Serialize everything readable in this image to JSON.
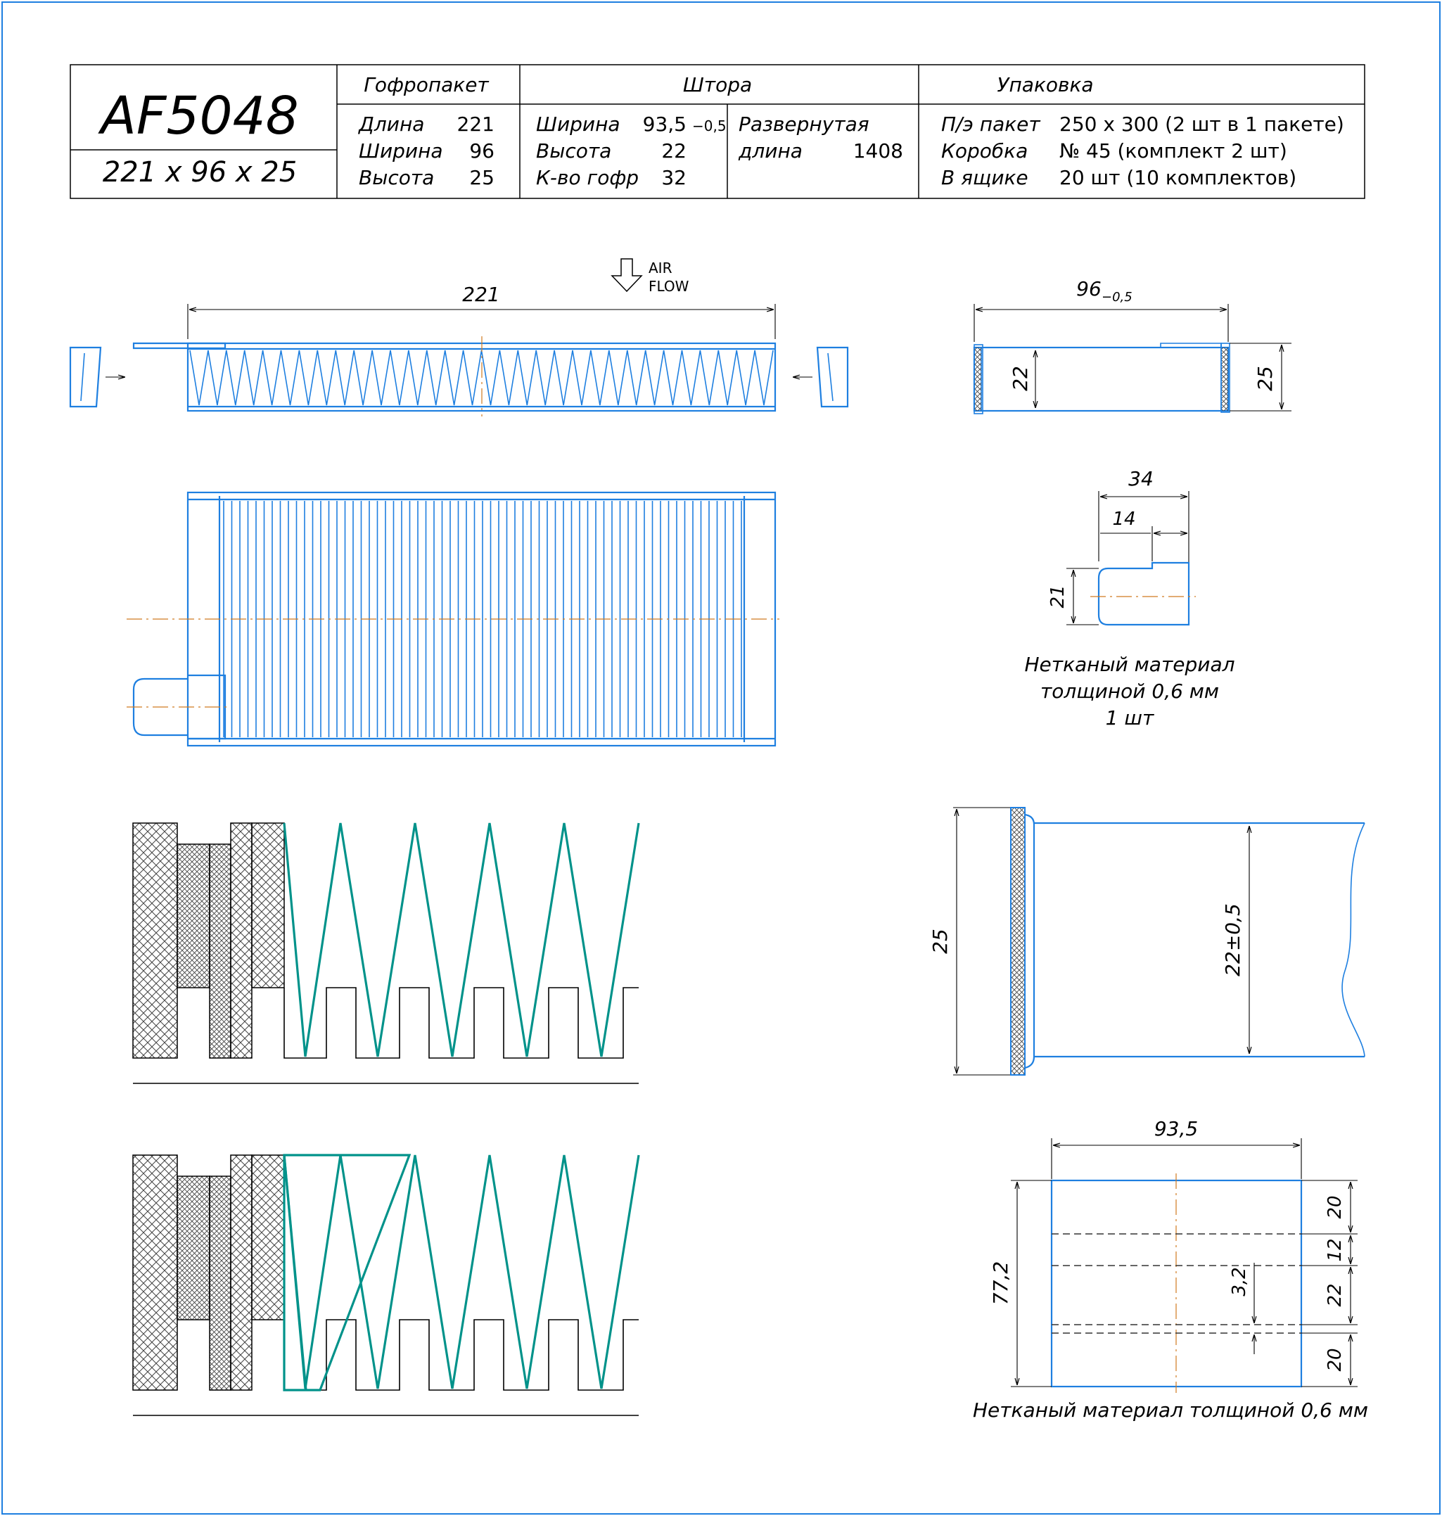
{
  "title_block": {
    "model": "AF5048",
    "size": "221 x 96 x 25",
    "gofropaket": {
      "header": "Гофропакет",
      "rows": [
        {
          "label": "Длина",
          "value": "221"
        },
        {
          "label": "Ширина",
          "value": "96"
        },
        {
          "label": "Высота",
          "value": "25"
        }
      ]
    },
    "shtora": {
      "header": "Штора",
      "rows": [
        {
          "label": "Ширина",
          "value": "93,5",
          "tol": "−0,5"
        },
        {
          "label": "Высота",
          "value": "22"
        },
        {
          "label": "К-во гофр",
          "value": "32"
        }
      ],
      "unfolded_label_1": "Развернутая",
      "unfolded_label_2": "длина",
      "unfolded_value": "1408"
    },
    "upakovka": {
      "header": "Упаковка",
      "rows": [
        {
          "label": "П/э пакет",
          "value": "250 х 300 (2 шт в 1 пакете)"
        },
        {
          "label": "Коробка",
          "value": "№ 45 (комплект 2 шт)"
        },
        {
          "label": "В ящике",
          "value": "20 шт (10 комплектов)"
        }
      ]
    }
  },
  "airflow": {
    "line1": "AIR",
    "line2": "FLOW"
  },
  "dims": {
    "length_221": "221",
    "width_96": "96",
    "width_96_tol": "−0,5",
    "height_22": "22",
    "height_25": "25",
    "tab_34": "34",
    "tab_14": "14",
    "tab_21": "21",
    "detail_25": "25",
    "detail_22": "22±0,5",
    "sheet_935": "93,5",
    "sheet_772": "77,2",
    "sheet_20a": "20",
    "sheet_12": "12",
    "sheet_22": "22",
    "sheet_20b": "20",
    "sheet_32": "3,2"
  },
  "notes": {
    "tab_note_1": "Нетканый материал",
    "tab_note_2": "толщиной 0,6 мм",
    "tab_note_3": "1 шт",
    "sheet_note": "Нетканый материал толщиной 0,6 мм"
  },
  "colors": {
    "frame": "#1e7fe0",
    "filter": "#1e7fe0",
    "pleat": "#00928a",
    "axis": "#d07a20"
  }
}
